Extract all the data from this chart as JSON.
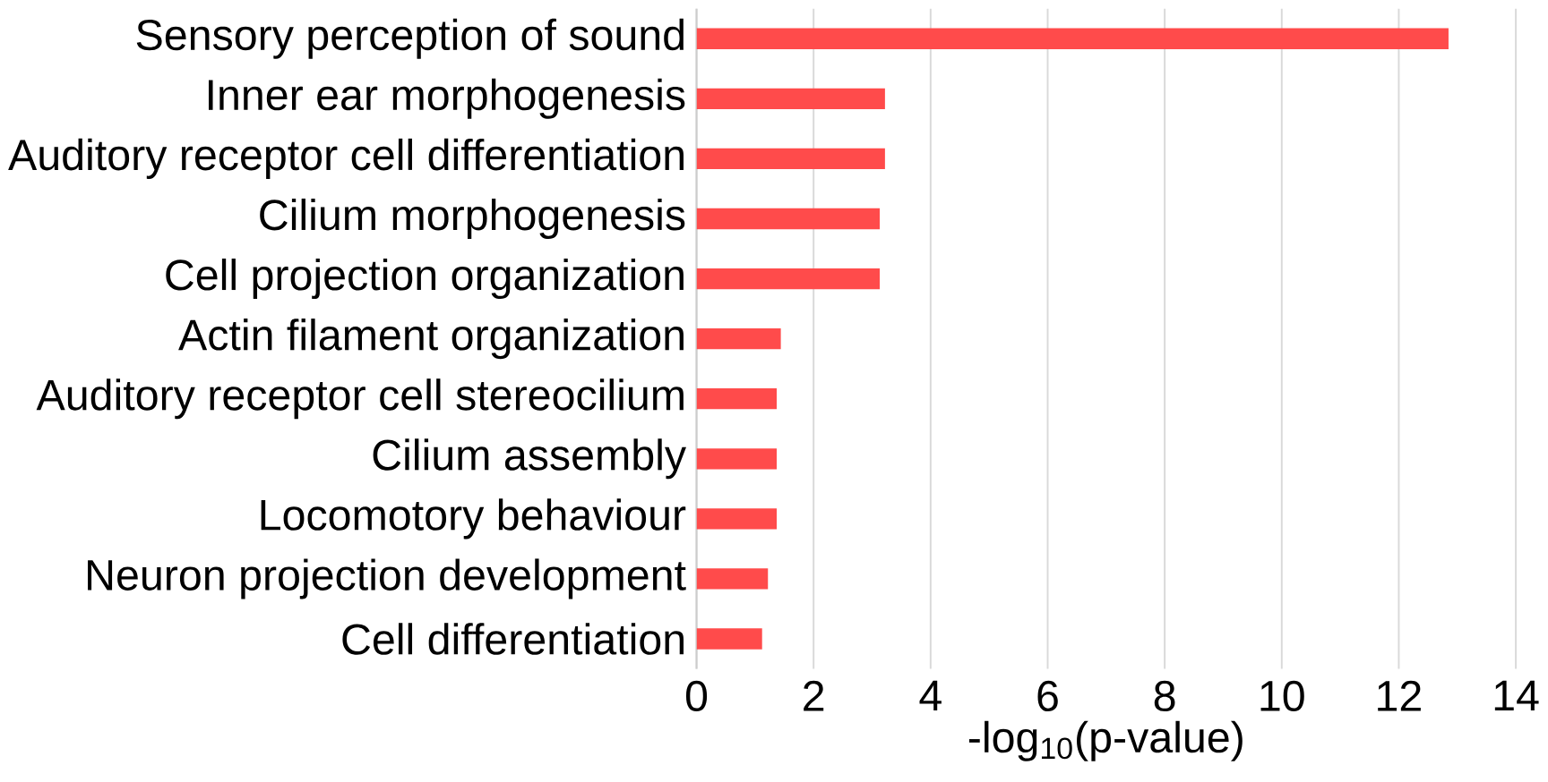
{
  "chart_data": {
    "type": "bar",
    "orientation": "horizontal",
    "xlabel": "-log$_{10}$(p-value)",
    "categories": [
      "Sensory perception of sound",
      "Inner ear morphogenesis",
      "Auditory receptor cell differentiation",
      "Cilium morphogenesis",
      "Cell projection organization",
      "Actin filament organization",
      "Auditory receptor cell stereocilium",
      "Cilium assembly",
      "Locomotory behaviour",
      "Neuron projection development",
      "Cell differentiation"
    ],
    "values": [
      12.85,
      3.22,
      3.22,
      3.13,
      3.13,
      1.44,
      1.37,
      1.37,
      1.37,
      1.22,
      1.12
    ],
    "color": "#ff4b4b",
    "xlim": [
      0,
      14
    ],
    "xticks": [
      0,
      2,
      4,
      6,
      8,
      10,
      12,
      14
    ],
    "grid": "x"
  }
}
